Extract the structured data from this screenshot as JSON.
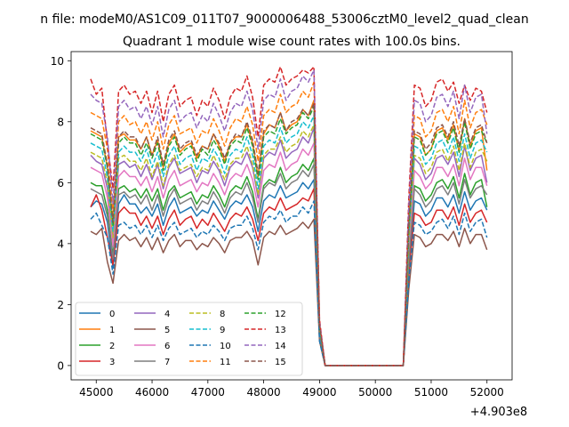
{
  "figure": {
    "suptitle": "n file: modeM0/AS1C09_011T07_9000006488_53006cztM0_level2_quad_clean",
    "title": "Quadrant 1 module wise count rates with 100.0s bins."
  },
  "chart_data": {
    "type": "line",
    "title": "Quadrant 1 module wise count rates with 100.0s bins.",
    "xlabel": "",
    "ylabel": "",
    "x_offset_label": "+4.903e8",
    "xlim": [
      44550,
      52450
    ],
    "ylim": [
      -0.47,
      10.3
    ],
    "xticks": [
      45000,
      46000,
      47000,
      48000,
      49000,
      50000,
      51000,
      52000
    ],
    "yticks": [
      0,
      2,
      4,
      6,
      8,
      10
    ],
    "grid": false,
    "legend": {
      "placement": "lower-left",
      "columns": 4
    },
    "series": [
      {
        "name": "0",
        "color": "#1f77b4",
        "style": "solid",
        "values": [
          5.2,
          5.4,
          5.3,
          4.7,
          3.2,
          5.3,
          5.6,
          5.3,
          5.3,
          5.0,
          5.2,
          4.9,
          5.3,
          4.6,
          5.2,
          5.5,
          5.0,
          5.1,
          5.2,
          4.9,
          5.1,
          5.0,
          5.4,
          5.1,
          4.8,
          5.2,
          5.4,
          5.3,
          5.6,
          5.2,
          4.4,
          5.4,
          5.6,
          5.5,
          5.9,
          5.5,
          5.6,
          5.7,
          6.0,
          5.8,
          6.1,
          1.0,
          0,
          0,
          0,
          0,
          0,
          0,
          0,
          0,
          0,
          0,
          0,
          0,
          0,
          0,
          0,
          3.2,
          5.4,
          5.3,
          4.9,
          5.1,
          5.5,
          5.5,
          5.2,
          5.6,
          5.0,
          5.7,
          5.1,
          5.4,
          5.5,
          5.1
        ]
      },
      {
        "name": "1",
        "color": "#ff7f0e",
        "style": "solid",
        "values": [
          7.7,
          7.6,
          7.5,
          6.5,
          4.7,
          7.5,
          7.6,
          7.4,
          7.4,
          7.1,
          7.5,
          6.9,
          7.4,
          6.5,
          7.3,
          7.6,
          7.0,
          7.2,
          7.3,
          6.8,
          7.2,
          7.1,
          7.6,
          7.2,
          6.7,
          7.3,
          7.5,
          7.5,
          7.9,
          7.3,
          6.2,
          7.6,
          7.9,
          7.8,
          8.3,
          7.7,
          7.9,
          8.0,
          8.4,
          8.2,
          8.7,
          1.3,
          0,
          0,
          0,
          0,
          0,
          0,
          0,
          0,
          0,
          0,
          0,
          0,
          0,
          0,
          0,
          4.5,
          7.6,
          7.5,
          6.9,
          7.1,
          7.7,
          7.8,
          7.4,
          7.9,
          7.0,
          8.1,
          7.2,
          7.7,
          7.8,
          6.4
        ]
      },
      {
        "name": "2",
        "color": "#2ca02c",
        "style": "solid",
        "values": [
          6.0,
          5.9,
          5.9,
          5.1,
          3.6,
          5.8,
          5.9,
          5.7,
          5.8,
          5.5,
          5.8,
          5.4,
          5.8,
          5.1,
          5.7,
          5.9,
          5.5,
          5.6,
          5.7,
          5.3,
          5.6,
          5.5,
          5.9,
          5.6,
          5.2,
          5.7,
          5.9,
          5.8,
          6.2,
          5.7,
          4.8,
          5.9,
          6.1,
          6.0,
          6.5,
          6.0,
          6.2,
          6.3,
          6.6,
          6.4,
          6.8,
          1.1,
          0,
          0,
          0,
          0,
          0,
          0,
          0,
          0,
          0,
          0,
          0,
          0,
          0,
          0,
          0,
          3.5,
          5.9,
          5.8,
          5.4,
          5.6,
          6.0,
          6.1,
          5.8,
          6.2,
          5.5,
          6.3,
          5.6,
          6.0,
          6.1,
          5.2
        ]
      },
      {
        "name": "3",
        "color": "#d62728",
        "style": "solid",
        "values": [
          5.2,
          5.6,
          5.1,
          4.2,
          3.3,
          5.0,
          5.2,
          5.0,
          5.0,
          4.6,
          4.9,
          4.5,
          4.9,
          4.3,
          4.8,
          5.1,
          4.6,
          4.8,
          4.9,
          4.5,
          4.8,
          4.6,
          5.0,
          4.7,
          4.4,
          4.8,
          5.0,
          4.9,
          5.2,
          4.8,
          4.1,
          5.0,
          5.2,
          5.1,
          5.5,
          5.1,
          5.2,
          5.3,
          5.5,
          5.4,
          5.8,
          0.9,
          0,
          0,
          0,
          0,
          0,
          0,
          0,
          0,
          0,
          0,
          0,
          0,
          0,
          0,
          0,
          3.0,
          5.0,
          4.9,
          4.6,
          4.7,
          5.1,
          5.1,
          4.8,
          5.2,
          4.6,
          5.3,
          4.7,
          5.0,
          5.1,
          4.7
        ]
      },
      {
        "name": "4",
        "color": "#9467bd",
        "style": "solid",
        "values": [
          6.9,
          6.7,
          6.6,
          5.8,
          4.1,
          6.6,
          6.7,
          6.5,
          6.6,
          6.2,
          6.6,
          6.1,
          6.6,
          5.8,
          6.5,
          6.8,
          6.3,
          6.4,
          6.5,
          6.0,
          6.4,
          6.3,
          6.7,
          6.4,
          5.9,
          6.5,
          6.7,
          6.6,
          7.0,
          6.5,
          5.5,
          6.8,
          7.0,
          6.9,
          7.4,
          6.8,
          7.0,
          7.1,
          7.5,
          7.3,
          7.8,
          1.2,
          0,
          0,
          0,
          0,
          0,
          0,
          0,
          0,
          0,
          0,
          0,
          0,
          0,
          0,
          0,
          4.0,
          6.8,
          6.6,
          6.1,
          6.3,
          6.8,
          6.9,
          6.6,
          7.0,
          6.2,
          7.2,
          6.4,
          6.8,
          6.9,
          6.0
        ]
      },
      {
        "name": "5",
        "color": "#8c564b",
        "style": "solid",
        "values": [
          4.4,
          4.3,
          4.5,
          3.4,
          2.7,
          4.1,
          4.3,
          4.1,
          4.2,
          3.9,
          4.2,
          3.8,
          4.2,
          3.7,
          4.1,
          4.3,
          3.9,
          4.1,
          4.1,
          3.8,
          4.0,
          3.9,
          4.2,
          4.0,
          3.7,
          4.1,
          4.2,
          4.2,
          4.4,
          4.1,
          3.3,
          4.2,
          4.4,
          4.3,
          4.6,
          4.3,
          4.4,
          4.5,
          4.7,
          4.5,
          4.8,
          0.8,
          0,
          0,
          0,
          0,
          0,
          0,
          0,
          0,
          0,
          0,
          0,
          0,
          0,
          0,
          0,
          2.5,
          4.3,
          4.2,
          3.9,
          4.0,
          4.3,
          4.3,
          4.1,
          4.4,
          3.9,
          4.5,
          4.0,
          4.3,
          4.3,
          3.8
        ]
      },
      {
        "name": "6",
        "color": "#e377c2",
        "style": "solid",
        "values": [
          6.5,
          6.4,
          6.3,
          5.5,
          3.9,
          6.2,
          6.4,
          6.2,
          6.2,
          5.9,
          6.2,
          5.7,
          6.2,
          5.5,
          6.1,
          6.4,
          5.9,
          6.0,
          6.1,
          5.7,
          6.0,
          5.9,
          6.3,
          6.0,
          5.6,
          6.1,
          6.3,
          6.2,
          6.6,
          6.1,
          5.2,
          6.4,
          6.6,
          6.5,
          7.0,
          6.4,
          6.6,
          6.7,
          7.1,
          6.9,
          7.3,
          1.1,
          0,
          0,
          0,
          0,
          0,
          0,
          0,
          0,
          0,
          0,
          0,
          0,
          0,
          0,
          0,
          3.8,
          6.4,
          6.2,
          5.8,
          6.0,
          6.5,
          6.5,
          6.2,
          6.6,
          5.9,
          6.8,
          6.1,
          6.5,
          6.5,
          5.9
        ]
      },
      {
        "name": "7",
        "color": "#7f7f7f",
        "style": "solid",
        "values": [
          5.8,
          5.7,
          5.6,
          4.9,
          3.5,
          5.6,
          5.7,
          5.5,
          5.6,
          5.3,
          5.6,
          5.1,
          5.6,
          4.9,
          5.5,
          5.8,
          5.3,
          5.4,
          5.5,
          5.1,
          5.4,
          5.3,
          5.7,
          5.4,
          5.0,
          5.5,
          5.7,
          5.6,
          6.0,
          5.5,
          4.7,
          5.8,
          6.0,
          5.9,
          6.3,
          5.8,
          6.0,
          6.1,
          6.4,
          6.2,
          6.6,
          1.0,
          0,
          0,
          0,
          0,
          0,
          0,
          0,
          0,
          0,
          0,
          0,
          0,
          0,
          0,
          0,
          3.4,
          5.8,
          5.6,
          5.2,
          5.4,
          5.8,
          5.9,
          5.6,
          6.0,
          5.3,
          6.1,
          5.5,
          5.8,
          5.9,
          5.6
        ]
      },
      {
        "name": "8",
        "color": "#bcbd22",
        "style": "dashed",
        "values": [
          7.0,
          6.9,
          6.8,
          6.0,
          4.2,
          6.8,
          6.9,
          6.7,
          6.7,
          6.4,
          6.8,
          6.2,
          6.7,
          5.9,
          6.6,
          6.9,
          6.4,
          6.5,
          6.6,
          6.2,
          6.5,
          6.4,
          6.9,
          6.5,
          6.1,
          6.6,
          6.8,
          6.8,
          7.2,
          6.6,
          5.6,
          6.9,
          7.1,
          7.1,
          7.5,
          7.0,
          7.2,
          7.3,
          7.7,
          7.5,
          7.9,
          1.2,
          0,
          0,
          0,
          0,
          0,
          0,
          0,
          0,
          0,
          0,
          0,
          0,
          0,
          0,
          0,
          4.1,
          6.9,
          6.8,
          6.3,
          6.5,
          7.0,
          7.1,
          6.7,
          7.2,
          6.4,
          7.3,
          6.5,
          7.0,
          7.1,
          6.7
        ]
      },
      {
        "name": "9",
        "color": "#17becf",
        "style": "dashed",
        "values": [
          7.3,
          7.2,
          7.1,
          6.2,
          4.4,
          7.0,
          7.2,
          7.0,
          7.0,
          6.7,
          7.1,
          6.5,
          7.0,
          6.2,
          6.9,
          7.2,
          6.6,
          6.8,
          6.9,
          6.4,
          6.8,
          6.7,
          7.1,
          6.8,
          6.3,
          6.9,
          7.1,
          7.0,
          7.5,
          6.9,
          5.8,
          7.2,
          7.4,
          7.3,
          7.8,
          7.3,
          7.5,
          7.6,
          8.0,
          7.8,
          8.2,
          1.2,
          0,
          0,
          0,
          0,
          0,
          0,
          0,
          0,
          0,
          0,
          0,
          0,
          0,
          0,
          0,
          4.3,
          7.2,
          7.1,
          6.6,
          6.8,
          7.3,
          7.4,
          7.0,
          7.5,
          6.7,
          7.6,
          6.8,
          7.3,
          7.4,
          7.0
        ]
      },
      {
        "name": "10",
        "color": "#1f77b4",
        "style": "dashed",
        "values": [
          4.8,
          5.0,
          4.6,
          4.2,
          3.0,
          4.6,
          4.7,
          4.5,
          4.6,
          4.3,
          4.6,
          4.2,
          4.6,
          4.1,
          4.5,
          4.7,
          4.3,
          4.4,
          4.5,
          4.2,
          4.4,
          4.3,
          4.6,
          4.4,
          4.1,
          4.5,
          4.6,
          4.6,
          4.9,
          4.5,
          3.8,
          4.7,
          4.9,
          4.8,
          5.1,
          4.7,
          4.9,
          4.9,
          5.2,
          5.0,
          5.4,
          0.8,
          0,
          0,
          0,
          0,
          0,
          0,
          0,
          0,
          0,
          0,
          0,
          0,
          0,
          0,
          0,
          2.8,
          4.7,
          4.6,
          4.3,
          4.4,
          4.7,
          4.8,
          4.5,
          4.9,
          4.3,
          5.0,
          4.4,
          4.7,
          4.8,
          4.2
        ]
      },
      {
        "name": "11",
        "color": "#ff7f0e",
        "style": "dashed",
        "values": [
          8.3,
          8.2,
          8.1,
          7.1,
          5.0,
          8.0,
          8.2,
          7.9,
          8.0,
          7.6,
          8.0,
          7.4,
          8.0,
          7.1,
          7.9,
          8.2,
          7.6,
          7.7,
          7.8,
          7.3,
          7.7,
          7.6,
          8.1,
          7.7,
          7.2,
          7.8,
          8.1,
          8.0,
          8.5,
          7.9,
          6.7,
          8.2,
          8.4,
          8.3,
          8.9,
          8.3,
          8.5,
          8.6,
          9.0,
          8.8,
          9.3,
          1.4,
          0,
          0,
          0,
          0,
          0,
          0,
          0,
          0,
          0,
          0,
          0,
          0,
          0,
          0,
          0,
          4.9,
          8.2,
          8.1,
          7.5,
          7.7,
          8.3,
          8.4,
          8.0,
          8.5,
          7.6,
          8.7,
          7.8,
          8.3,
          8.4,
          7.9
        ]
      },
      {
        "name": "12",
        "color": "#2ca02c",
        "style": "dashed",
        "values": [
          7.6,
          7.5,
          7.4,
          6.5,
          4.6,
          7.3,
          7.5,
          7.3,
          7.3,
          6.9,
          7.3,
          6.8,
          7.3,
          6.4,
          7.2,
          7.5,
          6.9,
          7.1,
          7.2,
          6.7,
          7.1,
          6.9,
          7.4,
          7.1,
          6.6,
          7.2,
          7.4,
          7.3,
          7.8,
          7.2,
          6.1,
          7.5,
          7.7,
          7.6,
          8.1,
          7.6,
          7.8,
          7.9,
          8.3,
          8.1,
          8.5,
          1.3,
          0,
          0,
          0,
          0,
          0,
          0,
          0,
          0,
          0,
          0,
          0,
          0,
          0,
          0,
          0,
          4.5,
          7.5,
          7.4,
          6.9,
          7.1,
          7.6,
          7.7,
          7.3,
          7.8,
          7.0,
          8.0,
          7.1,
          7.6,
          7.7,
          7.3
        ]
      },
      {
        "name": "13",
        "color": "#d62728",
        "style": "dashed",
        "values": [
          9.4,
          8.9,
          9.1,
          7.3,
          5.8,
          9.0,
          9.2,
          8.9,
          9.0,
          8.6,
          9.0,
          8.3,
          9.0,
          8.0,
          8.9,
          9.2,
          8.5,
          8.7,
          8.8,
          8.2,
          8.7,
          8.5,
          9.1,
          8.7,
          8.1,
          8.8,
          9.1,
          9.0,
          9.5,
          8.8,
          7.5,
          9.2,
          9.4,
          9.3,
          9.8,
          9.2,
          9.4,
          9.5,
          9.7,
          9.6,
          9.8,
          1.5,
          0,
          0,
          0,
          0,
          0,
          0,
          0,
          0,
          0,
          0,
          0,
          0,
          0,
          0,
          0,
          5.5,
          9.2,
          9.1,
          8.5,
          8.7,
          9.3,
          9.4,
          9.0,
          9.3,
          8.6,
          9.2,
          8.7,
          9.1,
          9.0,
          8.3
        ]
      },
      {
        "name": "14",
        "color": "#9467bd",
        "style": "dashed",
        "values": [
          8.9,
          8.7,
          8.6,
          7.5,
          5.3,
          8.5,
          8.7,
          8.4,
          8.5,
          8.1,
          8.5,
          7.9,
          8.5,
          7.5,
          8.4,
          8.7,
          8.0,
          8.2,
          8.3,
          7.8,
          8.2,
          8.0,
          8.6,
          8.2,
          7.7,
          8.3,
          8.6,
          8.5,
          9.0,
          8.4,
          7.1,
          8.7,
          8.9,
          8.8,
          9.4,
          8.7,
          9.0,
          9.1,
          9.5,
          9.3,
          9.7,
          1.4,
          0,
          0,
          0,
          0,
          0,
          0,
          0,
          0,
          0,
          0,
          0,
          0,
          0,
          0,
          0,
          5.2,
          8.7,
          8.6,
          8.0,
          8.2,
          8.8,
          8.9,
          8.5,
          9.0,
          8.1,
          9.2,
          8.3,
          8.8,
          8.9,
          7.6
        ]
      },
      {
        "name": "15",
        "color": "#8c564b",
        "style": "dashed",
        "values": [
          7.8,
          7.7,
          7.6,
          6.6,
          4.7,
          7.5,
          7.7,
          7.5,
          7.5,
          7.1,
          7.5,
          6.9,
          7.5,
          6.6,
          7.4,
          7.7,
          7.1,
          7.3,
          7.4,
          6.9,
          7.2,
          7.1,
          7.6,
          7.3,
          6.8,
          7.3,
          7.6,
          7.5,
          8.0,
          7.4,
          6.3,
          7.7,
          7.9,
          7.8,
          8.3,
          7.7,
          8.0,
          8.1,
          8.4,
          8.2,
          8.6,
          1.3,
          0,
          0,
          0,
          0,
          0,
          0,
          0,
          0,
          0,
          0,
          0,
          0,
          0,
          0,
          0,
          4.6,
          7.7,
          7.6,
          7.1,
          7.3,
          7.8,
          7.9,
          7.5,
          8.0,
          7.2,
          8.1,
          7.3,
          7.8,
          7.9,
          7.3
        ]
      }
    ]
  }
}
